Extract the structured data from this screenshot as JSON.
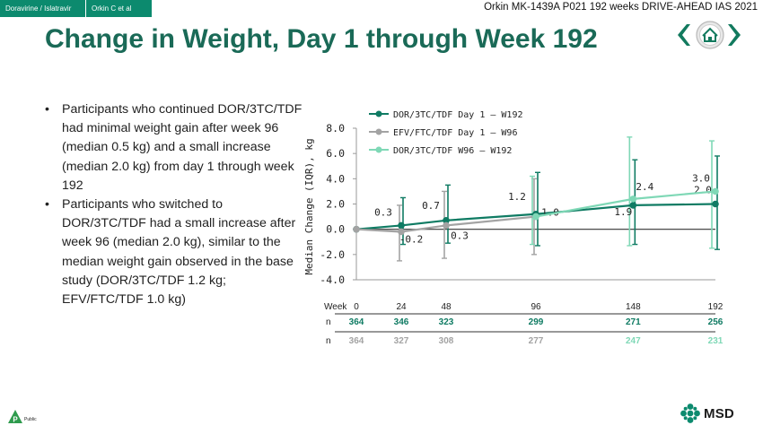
{
  "header": {
    "breadcrumb": [
      "Doravirine / Islatravir",
      "Orkin C et al"
    ],
    "session": "Orkin MK-1439A P021 192 weeks DRIVE-AHEAD IAS 2021"
  },
  "title": "Change in Weight, Day 1 through Week 192",
  "bullets": [
    "Participants who continued DOR/3TC/TDF had minimal weight gain after week 96 (median 0.5 kg) and a small increase (median 2.0 kg) from day 1 through week 192",
    "Participants who switched to DOR/3TC/TDF had a small increase after week 96 (median 2.0 kg), similar to the median weight gain observed in the base study (DOR/3TC/TDF 1.2 kg; EFV/FTC/TDF 1.0 kg)"
  ],
  "footer": {
    "public_label": "Public",
    "brand": "MSD"
  },
  "colors": {
    "dark_green": "#0f7b63",
    "gray": "#a3a3a3",
    "light_green": "#7fd8b6",
    "title": "#1a6a57"
  },
  "chart_data": {
    "type": "line",
    "ylabel": "Median Change (IQR), kg",
    "ylim": [
      -4,
      8
    ],
    "yticks": [
      8.0,
      6.0,
      4.0,
      2.0,
      0.0,
      -2.0,
      -4.0
    ],
    "ytick_labels": [
      "8.0",
      "6.0",
      "4.0",
      "2.0",
      "0.0",
      "-2.0",
      "-4.0"
    ],
    "x_label": "Week",
    "x_ticks": [
      0,
      24,
      48,
      96,
      148,
      192
    ],
    "series": [
      {
        "name": "DOR/3TC/TDF Day 1 – W192",
        "color": "#0f7b63",
        "x": [
          0,
          24,
          48,
          96,
          148,
          192
        ],
        "values": [
          0,
          0.3,
          0.7,
          1.2,
          1.9,
          2.0
        ],
        "low": [
          0,
          -1.2,
          -1.1,
          -1.3,
          -1.2,
          -1.6
        ],
        "high": [
          0,
          2.5,
          3.5,
          4.5,
          5.5,
          5.8
        ],
        "labels": [
          "",
          "0.3",
          "0.7",
          "1.2",
          "1.9",
          "2.0"
        ]
      },
      {
        "name": "EFV/FTC/TDF Day 1 – W96",
        "color": "#a3a3a3",
        "x": [
          0,
          24,
          48,
          96
        ],
        "values": [
          0,
          -0.2,
          0.3,
          1.0
        ],
        "low": [
          0,
          -2.5,
          -2.3,
          -2.0
        ],
        "high": [
          0,
          1.9,
          3.0,
          4.0
        ],
        "labels": [
          "",
          "-0.2",
          "0.3",
          "1.0"
        ]
      },
      {
        "name": "DOR/3TC/TDF W96 – W192",
        "color": "#7fd8b6",
        "x": [
          96,
          148,
          192
        ],
        "values": [
          1.0,
          2.4,
          3.0
        ],
        "low": [
          -1.2,
          -1.3,
          -1.5
        ],
        "high": [
          4.2,
          7.3,
          7.0
        ],
        "labels": [
          "",
          "2.4",
          "3.0"
        ]
      }
    ],
    "n_table": {
      "label": "n",
      "rows": [
        {
          "color": "#0f7b63",
          "values": [
            "364",
            "346",
            "323",
            "299",
            "271",
            "256"
          ]
        },
        {
          "color": "#a3a3a3",
          "values": [
            "364",
            "327",
            "308",
            "277",
            "247",
            "231"
          ],
          "light_from_index": 4,
          "light_color": "#7fd8b6"
        }
      ]
    }
  }
}
